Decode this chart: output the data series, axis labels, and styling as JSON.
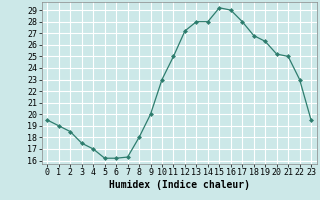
{
  "x": [
    0,
    1,
    2,
    3,
    4,
    5,
    6,
    7,
    8,
    9,
    10,
    11,
    12,
    13,
    14,
    15,
    16,
    17,
    18,
    19,
    20,
    21,
    22,
    23
  ],
  "y": [
    19.5,
    19.0,
    18.5,
    17.5,
    17.0,
    16.2,
    16.2,
    16.3,
    18.0,
    20.0,
    23.0,
    25.0,
    27.2,
    28.0,
    28.0,
    29.2,
    29.0,
    28.0,
    26.8,
    26.3,
    25.2,
    25.0,
    23.0,
    19.5
  ],
  "xlabel": "Humidex (Indice chaleur)",
  "xlim": [
    -0.5,
    23.5
  ],
  "ylim": [
    15.7,
    29.7
  ],
  "yticks": [
    16,
    17,
    18,
    19,
    20,
    21,
    22,
    23,
    24,
    25,
    26,
    27,
    28,
    29
  ],
  "xticks": [
    0,
    1,
    2,
    3,
    4,
    5,
    6,
    7,
    8,
    9,
    10,
    11,
    12,
    13,
    14,
    15,
    16,
    17,
    18,
    19,
    20,
    21,
    22,
    23
  ],
  "line_color": "#2e7d6e",
  "marker": "D",
  "marker_size": 2.0,
  "bg_color": "#cce8e8",
  "grid_color": "#ffffff",
  "label_fontsize": 7.0,
  "tick_fontsize": 6.0,
  "spine_color": "#888888"
}
